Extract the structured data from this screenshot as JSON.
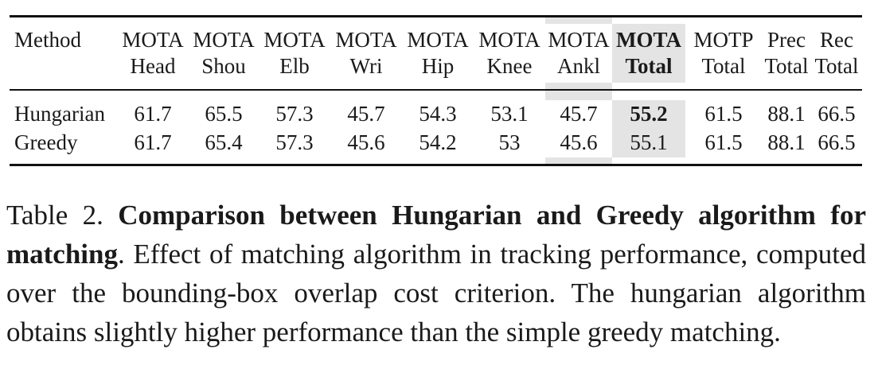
{
  "table": {
    "header_row1": [
      "Method",
      "MOTA",
      "MOTA",
      "MOTA",
      "MOTA",
      "MOTA",
      "MOTA",
      "MOTA",
      "MOTA",
      "MOTP",
      "Prec",
      "Rec"
    ],
    "header_row2": [
      "",
      "Head",
      "Shou",
      "Elb",
      "Wri",
      "Hip",
      "Knee",
      "Ankl",
      "Total",
      "Total",
      "Total",
      "Total"
    ],
    "rows": [
      {
        "method": "Hungarian",
        "values": [
          "61.7",
          "65.5",
          "57.3",
          "45.7",
          "54.3",
          "53.1",
          "45.7",
          "55.2",
          "61.5",
          "88.1",
          "66.5"
        ]
      },
      {
        "method": "Greedy",
        "values": [
          "61.7",
          "65.4",
          "57.3",
          "45.6",
          "54.2",
          "53",
          "45.6",
          "55.1",
          "61.5",
          "88.1",
          "66.5"
        ]
      }
    ],
    "highlight_color": "#e4e4e4"
  },
  "caption": {
    "label": "Table 2.",
    "title": "Comparison between Hungarian and Greedy algorithm for matching",
    "body": ". Effect of matching algorithm in tracking performance, computed over the bounding-box overlap cost criterion. The hungarian algorithm obtains slightly higher performance than the simple greedy matching."
  }
}
